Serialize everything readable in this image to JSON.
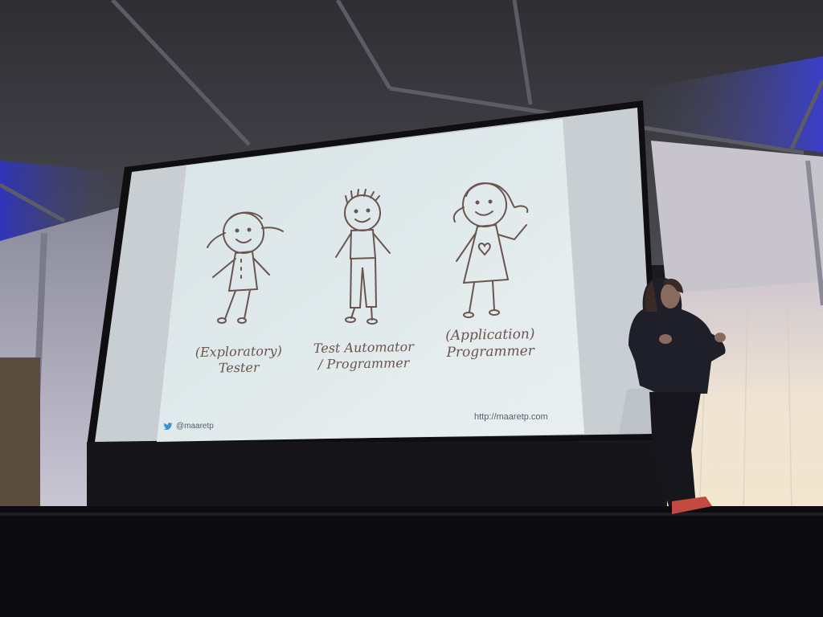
{
  "slide": {
    "labels": [
      {
        "line1": "(Exploratory)",
        "line2": "Tester"
      },
      {
        "line1": "Test Automator",
        "line2": "/ Programmer"
      },
      {
        "line1": "(Application)",
        "line2": "Programmer"
      }
    ],
    "twitter_handle": "@maaretp",
    "url": "http://maaretp.com"
  },
  "icons": {
    "twitter": "twitter-bird-icon"
  },
  "colors": {
    "tent_ceiling": "#3a3a40",
    "blue_light": "#3b3fc8",
    "screen": "#e6eef0",
    "stage": "#111114",
    "curtain": "#e8dccb",
    "sketch_ink": "#6a5550"
  }
}
